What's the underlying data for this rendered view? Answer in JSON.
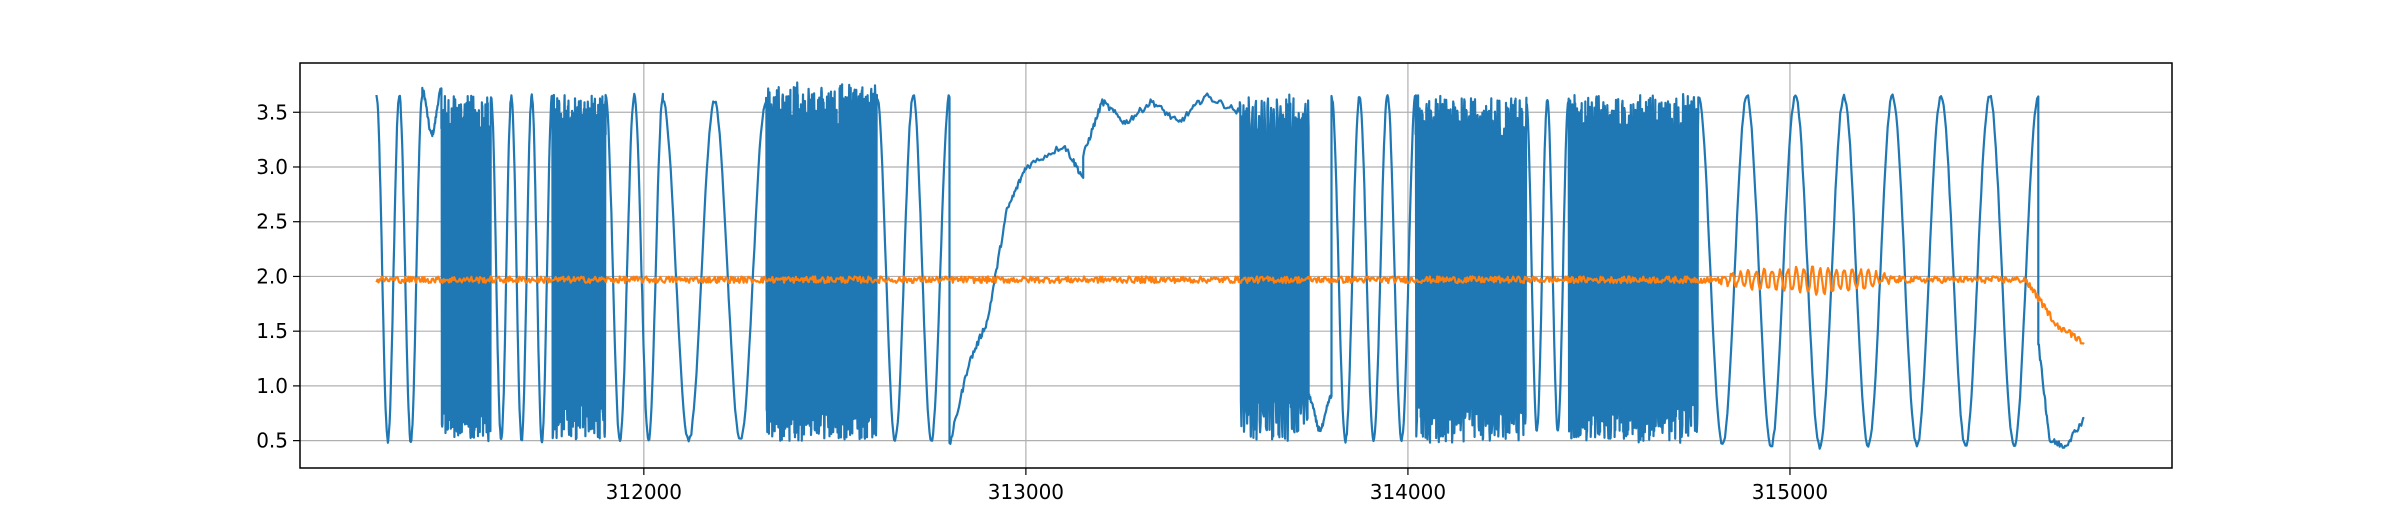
{
  "chart_data": {
    "type": "line",
    "title": "",
    "xlabel": "",
    "ylabel": "",
    "xlim": [
      311100,
      316000
    ],
    "ylim": [
      0.25,
      3.95
    ],
    "grid": true,
    "legend": "none",
    "x_ticks": [
      312000,
      313000,
      314000,
      315000
    ],
    "x_tick_labels": [
      "312000",
      "313000",
      "314000",
      "315000"
    ],
    "y_ticks": [
      0.5,
      1.0,
      1.5,
      2.0,
      2.5,
      3.0,
      3.5
    ],
    "y_tick_labels": [
      "0.5",
      "1.0",
      "1.5",
      "2.0",
      "2.5",
      "3.0",
      "3.5"
    ],
    "series": [
      {
        "color": "#1f77b4",
        "x_range": [
          311300,
          315770
        ],
        "segments": [
          {
            "x0": 311300,
            "x1": 311420,
            "kind": "envelope",
            "pattern": "wave",
            "waves": 2,
            "low": 0.5,
            "high": 3.65
          },
          {
            "x0": 311420,
            "x1": 311470,
            "kind": "wave",
            "waves": 1,
            "low": 3.3,
            "high": 3.7
          },
          {
            "x0": 311470,
            "x1": 311600,
            "kind": "dense",
            "cycles": 28,
            "low": 0.5,
            "high": 3.65
          },
          {
            "x0": 311600,
            "x1": 311760,
            "kind": "wave",
            "waves": 3,
            "low": 0.5,
            "high": 3.65
          },
          {
            "x0": 311760,
            "x1": 311900,
            "kind": "dense",
            "cycles": 30,
            "low": 0.5,
            "high": 3.65
          },
          {
            "x0": 311900,
            "x1": 312050,
            "kind": "wave",
            "waves": 2,
            "low": 0.5,
            "high": 3.65
          },
          {
            "x0": 312050,
            "x1": 312320,
            "kind": "wave",
            "waves": 2,
            "low": 0.5,
            "high": 3.6
          },
          {
            "x0": 312320,
            "x1": 312610,
            "kind": "dense",
            "cycles": 60,
            "low": 0.5,
            "high": 3.75
          },
          {
            "x0": 312610,
            "x1": 312800,
            "kind": "wave",
            "waves": 2,
            "low": 0.5,
            "high": 3.65
          },
          {
            "x0": 312800,
            "x1": 313150,
            "kind": "ramp",
            "points": [
              [
                312800,
                0.45
              ],
              [
                312850,
                1.2
              ],
              [
                312900,
                1.6
              ],
              [
                312950,
                2.6
              ],
              [
                313000,
                3.0
              ],
              [
                313100,
                3.2
              ],
              [
                313150,
                2.9
              ]
            ]
          },
          {
            "x0": 313150,
            "x1": 313560,
            "kind": "ramp",
            "points": [
              [
                313150,
                3.1
              ],
              [
                313200,
                3.6
              ],
              [
                313260,
                3.4
              ],
              [
                313330,
                3.6
              ],
              [
                313400,
                3.4
              ],
              [
                313470,
                3.65
              ],
              [
                313560,
                3.5
              ]
            ]
          },
          {
            "x0": 313560,
            "x1": 313740,
            "kind": "dense",
            "cycles": 22,
            "low": 0.5,
            "high": 3.65
          },
          {
            "x0": 313740,
            "x1": 313800,
            "kind": "wave",
            "waves": 1,
            "low": 0.6,
            "high": 0.9
          },
          {
            "x0": 313800,
            "x1": 314020,
            "kind": "wave",
            "waves": 3,
            "low": 0.5,
            "high": 3.65
          },
          {
            "x0": 314020,
            "x1": 314310,
            "kind": "dense",
            "cycles": 50,
            "low": 0.5,
            "high": 3.65
          },
          {
            "x0": 314310,
            "x1": 314420,
            "kind": "wave",
            "waves": 2,
            "low": 0.6,
            "high": 3.6
          },
          {
            "x0": 314420,
            "x1": 314760,
            "kind": "dense",
            "cycles": 60,
            "low": 0.5,
            "high": 3.65
          },
          {
            "x0": 314760,
            "x1": 315650,
            "kind": "wave",
            "waves": 7,
            "low": 0.45,
            "high": 3.65
          },
          {
            "x0": 315650,
            "x1": 315770,
            "kind": "ramp",
            "points": [
              [
                315650,
                1.4
              ],
              [
                315680,
                0.5
              ],
              [
                315720,
                0.45
              ],
              [
                315770,
                0.7
              ]
            ]
          }
        ]
      },
      {
        "color": "#ff7f0e",
        "x_range": [
          311300,
          315770
        ],
        "baseline": 1.97,
        "noise": 0.03,
        "oscillation": {
          "x0": 314780,
          "x1": 315620,
          "amplitude": 0.12,
          "cycles": 40
        },
        "tail": [
          [
            315620,
            1.95
          ],
          [
            315700,
            1.55
          ],
          [
            315770,
            1.4
          ]
        ]
      }
    ]
  }
}
